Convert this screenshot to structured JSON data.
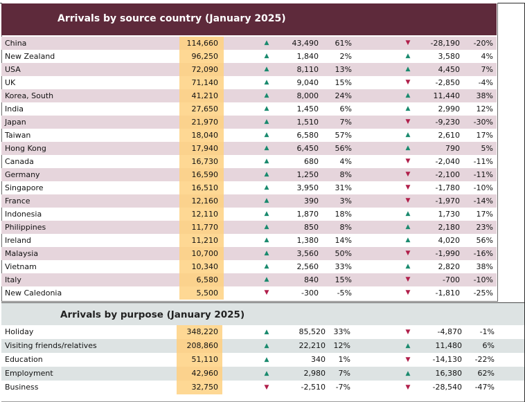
{
  "colors": {
    "header_bg": "#5e2a3b",
    "row_shade_country": "#e6d5dc",
    "row_shade_purpose": "#dde3e3",
    "value_highlight": "#fed894",
    "up": "#1a8a6e",
    "down": "#b01e4a"
  },
  "country_table": {
    "title": "Arrivals by source country (January 2025)",
    "rows": [
      {
        "name": "China",
        "value": "114,660",
        "dir1": "up",
        "d1": "43,490",
        "p1": "61%",
        "dir2": "down",
        "d2": "-28,190",
        "p2": "-20%"
      },
      {
        "name": "New Zealand",
        "value": "96,250",
        "dir1": "up",
        "d1": "1,840",
        "p1": "2%",
        "dir2": "up",
        "d2": "3,580",
        "p2": "4%"
      },
      {
        "name": "USA",
        "value": "72,090",
        "dir1": "up",
        "d1": "8,110",
        "p1": "13%",
        "dir2": "up",
        "d2": "4,450",
        "p2": "7%"
      },
      {
        "name": "UK",
        "value": "71,140",
        "dir1": "up",
        "d1": "9,040",
        "p1": "15%",
        "dir2": "down",
        "d2": "-2,850",
        "p2": "-4%"
      },
      {
        "name": "Korea, South",
        "value": "41,210",
        "dir1": "up",
        "d1": "8,000",
        "p1": "24%",
        "dir2": "up",
        "d2": "11,440",
        "p2": "38%"
      },
      {
        "name": "India",
        "value": "27,650",
        "dir1": "up",
        "d1": "1,450",
        "p1": "6%",
        "dir2": "up",
        "d2": "2,990",
        "p2": "12%"
      },
      {
        "name": "Japan",
        "value": "21,970",
        "dir1": "up",
        "d1": "1,510",
        "p1": "7%",
        "dir2": "down",
        "d2": "-9,230",
        "p2": "-30%"
      },
      {
        "name": "Taiwan",
        "value": "18,040",
        "dir1": "up",
        "d1": "6,580",
        "p1": "57%",
        "dir2": "up",
        "d2": "2,610",
        "p2": "17%"
      },
      {
        "name": "Hong Kong",
        "value": "17,940",
        "dir1": "up",
        "d1": "6,450",
        "p1": "56%",
        "dir2": "up",
        "d2": "790",
        "p2": "5%"
      },
      {
        "name": "Canada",
        "value": "16,730",
        "dir1": "up",
        "d1": "680",
        "p1": "4%",
        "dir2": "down",
        "d2": "-2,040",
        "p2": "-11%"
      },
      {
        "name": "Germany",
        "value": "16,590",
        "dir1": "up",
        "d1": "1,250",
        "p1": "8%",
        "dir2": "down",
        "d2": "-2,100",
        "p2": "-11%"
      },
      {
        "name": "Singapore",
        "value": "16,510",
        "dir1": "up",
        "d1": "3,950",
        "p1": "31%",
        "dir2": "down",
        "d2": "-1,780",
        "p2": "-10%"
      },
      {
        "name": "France",
        "value": "12,160",
        "dir1": "up",
        "d1": "390",
        "p1": "3%",
        "dir2": "down",
        "d2": "-1,970",
        "p2": "-14%"
      },
      {
        "name": "Indonesia",
        "value": "12,110",
        "dir1": "up",
        "d1": "1,870",
        "p1": "18%",
        "dir2": "up",
        "d2": "1,730",
        "p2": "17%"
      },
      {
        "name": "Philippines",
        "value": "11,770",
        "dir1": "up",
        "d1": "850",
        "p1": "8%",
        "dir2": "up",
        "d2": "2,180",
        "p2": "23%"
      },
      {
        "name": "Ireland",
        "value": "11,210",
        "dir1": "up",
        "d1": "1,380",
        "p1": "14%",
        "dir2": "up",
        "d2": "4,020",
        "p2": "56%"
      },
      {
        "name": "Malaysia",
        "value": "10,700",
        "dir1": "up",
        "d1": "3,560",
        "p1": "50%",
        "dir2": "down",
        "d2": "-1,990",
        "p2": "-16%"
      },
      {
        "name": "Vietnam",
        "value": "10,340",
        "dir1": "up",
        "d1": "2,560",
        "p1": "33%",
        "dir2": "up",
        "d2": "2,820",
        "p2": "38%"
      },
      {
        "name": "Italy",
        "value": "6,580",
        "dir1": "up",
        "d1": "840",
        "p1": "15%",
        "dir2": "down",
        "d2": "-700",
        "p2": "-10%"
      },
      {
        "name": "New Caledonia",
        "value": "5,500",
        "dir1": "down",
        "d1": "-300",
        "p1": "-5%",
        "dir2": "down",
        "d2": "-1,810",
        "p2": "-25%"
      }
    ]
  },
  "purpose_table": {
    "title": "Arrivals by purpose (January 2025)",
    "rows": [
      {
        "name": "Holiday",
        "value": "348,220",
        "dir1": "up",
        "d1": "85,520",
        "p1": "33%",
        "dir2": "down",
        "d2": "-4,870",
        "p2": "-1%"
      },
      {
        "name": "Visiting friends/relatives",
        "value": "208,860",
        "dir1": "up",
        "d1": "22,210",
        "p1": "12%",
        "dir2": "up",
        "d2": "11,480",
        "p2": "6%"
      },
      {
        "name": "Education",
        "value": "51,110",
        "dir1": "up",
        "d1": "340",
        "p1": "1%",
        "dir2": "down",
        "d2": "-14,130",
        "p2": "-22%"
      },
      {
        "name": "Employment",
        "value": "42,960",
        "dir1": "up",
        "d1": "2,980",
        "p1": "7%",
        "dir2": "up",
        "d2": "16,380",
        "p2": "62%"
      },
      {
        "name": "Business",
        "value": "32,750",
        "dir1": "down",
        "d1": "-2,510",
        "p1": "-7%",
        "dir2": "down",
        "d2": "-28,540",
        "p2": "-47%"
      }
    ]
  }
}
